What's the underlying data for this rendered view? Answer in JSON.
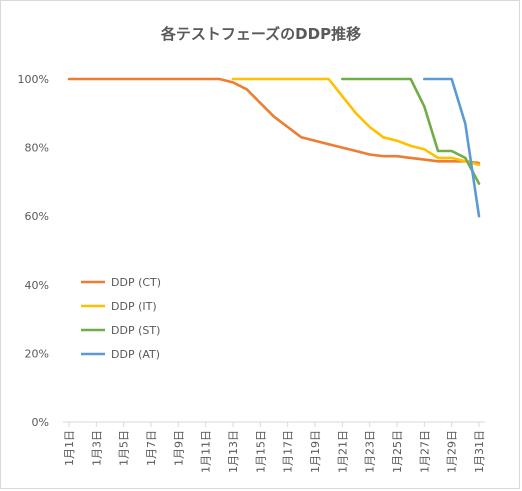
{
  "chart_data": {
    "type": "line",
    "title": "各テストフェーズのDDP推移",
    "xlabel": "",
    "ylabel": "",
    "x": [
      "1月1日",
      "1月2日",
      "1月3日",
      "1月4日",
      "1月5日",
      "1月6日",
      "1月7日",
      "1月8日",
      "1月9日",
      "1月10日",
      "1月11日",
      "1月12日",
      "1月13日",
      "1月14日",
      "1月15日",
      "1月16日",
      "1月17日",
      "1月18日",
      "1月19日",
      "1月20日",
      "1月21日",
      "1月22日",
      "1月23日",
      "1月24日",
      "1月25日",
      "1月26日",
      "1月27日",
      "1月28日",
      "1月29日",
      "1月30日",
      "1月31日"
    ],
    "x_tick_labels": [
      "1月1日",
      "1月3日",
      "1月5日",
      "1月7日",
      "1月9日",
      "1月11日",
      "1月13日",
      "1月15日",
      "1月17日",
      "1月19日",
      "1月21日",
      "1月23日",
      "1月25日",
      "1月27日",
      "1月29日",
      "1月31日"
    ],
    "y_tick_labels": [
      "0%",
      "20%",
      "40%",
      "60%",
      "80%",
      "100%"
    ],
    "ylim": [
      0,
      100
    ],
    "grid": false,
    "legend_position": "left-middle",
    "series": [
      {
        "name": "DDP (CT)",
        "color": "#ed7d31",
        "values": [
          100,
          100,
          100,
          100,
          100,
          100,
          100,
          100,
          100,
          100,
          100,
          100,
          99,
          97,
          93,
          89,
          86,
          83,
          82,
          81,
          80,
          79,
          78,
          77.5,
          77.5,
          77,
          76.5,
          76,
          76,
          76,
          75.5
        ]
      },
      {
        "name": "DDP (IT)",
        "color": "#ffc000",
        "values": [
          null,
          null,
          null,
          null,
          null,
          null,
          null,
          null,
          null,
          null,
          null,
          null,
          100,
          100,
          100,
          100,
          100,
          100,
          100,
          100,
          95,
          90,
          86,
          83,
          82,
          80.5,
          79.5,
          77,
          77,
          76,
          75
        ]
      },
      {
        "name": "DDP (ST)",
        "color": "#70ad47",
        "values": [
          null,
          null,
          null,
          null,
          null,
          null,
          null,
          null,
          null,
          null,
          null,
          null,
          null,
          null,
          null,
          null,
          null,
          null,
          null,
          null,
          100,
          100,
          100,
          100,
          100,
          100,
          92,
          79,
          79,
          77,
          69.5
        ]
      },
      {
        "name": "DDP (AT)",
        "color": "#5b9bd5",
        "values": [
          null,
          null,
          null,
          null,
          null,
          null,
          null,
          null,
          null,
          null,
          null,
          null,
          null,
          null,
          null,
          null,
          null,
          null,
          null,
          null,
          null,
          null,
          null,
          null,
          null,
          null,
          100,
          100,
          100,
          87,
          60
        ]
      }
    ]
  }
}
